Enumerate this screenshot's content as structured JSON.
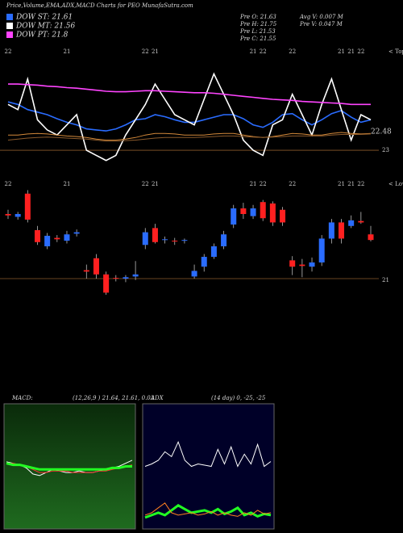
{
  "header": {
    "title": "Price,Volume,EMA,ADX,MACD Charts for PEO MunafaSutra.com",
    "info": [
      "Pre  O: 21.63",
      "Pre  H: 21.75",
      "Pre  L: 21.53",
      "Pre  C: 21.55",
      "Avg V: 0.007 M",
      "Pre  V: 0.047 M"
    ],
    "tops_label": "< Tope",
    "lows_label": "< Lowne"
  },
  "chart_data": [
    {
      "type": "line",
      "annotation": "22.48",
      "ylim": [
        22.7,
        25.0
      ],
      "yticks": [
        23
      ],
      "series": [
        {
          "name": "DOW ST: 21.61",
          "color": "#2a6cff",
          "values": [
            23.95,
            23.9,
            23.8,
            23.75,
            23.7,
            23.62,
            23.55,
            23.5,
            23.42,
            23.4,
            23.38,
            23.42,
            23.5,
            23.6,
            23.62,
            23.7,
            23.66,
            23.6,
            23.55,
            23.55,
            23.6,
            23.65,
            23.7,
            23.7,
            23.62,
            23.5,
            23.45,
            23.55,
            23.7,
            23.72,
            23.6,
            23.5,
            23.6,
            23.72,
            23.78,
            23.65,
            23.55,
            23.6
          ]
        },
        {
          "name": "DOW MT: 21.56",
          "color": "#ffffff",
          "values": [
            23.9,
            23.8,
            24.4,
            23.6,
            23.4,
            23.3,
            23.5,
            23.7,
            23.0,
            22.9,
            22.8,
            22.9,
            23.3,
            23.6,
            23.9,
            24.3,
            24.0,
            23.7,
            23.6,
            23.5,
            24.0,
            24.5,
            24.1,
            23.7,
            23.2,
            23.0,
            22.9,
            23.5,
            23.6,
            24.1,
            23.7,
            23.3,
            23.9,
            24.4,
            23.8,
            23.2,
            23.7,
            23.6
          ]
        },
        {
          "name": "DOW PT: 21.8",
          "color": "#ff44ff",
          "values": [
            24.3,
            24.3,
            24.29,
            24.28,
            24.26,
            24.25,
            24.23,
            24.22,
            24.2,
            24.18,
            24.16,
            24.15,
            24.15,
            24.16,
            24.17,
            24.17,
            24.16,
            24.15,
            24.14,
            24.13,
            24.13,
            24.12,
            24.1,
            24.08,
            24.06,
            24.04,
            24.02,
            24.0,
            23.99,
            23.98,
            23.96,
            23.95,
            23.94,
            23.93,
            23.92,
            23.9,
            23.9,
            23.9
          ]
        },
        {
          "color": "#d2883a",
          "values": [
            23.3,
            23.3,
            23.32,
            23.33,
            23.32,
            23.3,
            23.28,
            23.27,
            23.25,
            23.22,
            23.2,
            23.2,
            23.22,
            23.25,
            23.3,
            23.33,
            23.33,
            23.32,
            23.3,
            23.3,
            23.3,
            23.32,
            23.33,
            23.33,
            23.3,
            23.27,
            23.25,
            23.27,
            23.3,
            23.33,
            23.32,
            23.3,
            23.3,
            23.33,
            23.35,
            23.33,
            23.32,
            23.33
          ]
        },
        {
          "color": "#8b5a2b",
          "values": [
            23.2,
            23.22,
            23.24,
            23.25,
            23.26,
            23.25,
            23.24,
            23.23,
            23.22,
            23.2,
            23.18,
            23.18,
            23.19,
            23.2,
            23.22,
            23.24,
            23.25,
            23.25,
            23.25,
            23.25,
            23.26,
            23.27,
            23.28,
            23.28,
            23.27,
            23.26,
            23.25,
            23.26,
            23.27,
            23.28,
            23.28,
            23.28,
            23.28,
            23.3,
            23.31,
            23.31,
            23.31,
            23.32
          ]
        }
      ]
    },
    {
      "type": "candlestick",
      "ylim": [
        20.77,
        22.38
      ],
      "yticks": [
        21
      ],
      "categories": [
        "22",
        null,
        null,
        null,
        null,
        null,
        "21",
        null,
        null,
        null,
        null,
        null,
        null,
        null,
        "22",
        "21",
        null,
        null,
        null,
        null,
        null,
        null,
        null,
        null,
        null,
        "21",
        "22",
        null,
        null,
        "22",
        null,
        null,
        null,
        null,
        "21",
        "21",
        "22",
        null
      ],
      "open": [
        21.92,
        21.88,
        22.21,
        21.69,
        21.46,
        21.58,
        21.54,
        21.64,
        21.12,
        21.29,
        21.06,
        21.01,
        21.0,
        21.03,
        21.48,
        21.72,
        21.55,
        21.54,
        21.54,
        21.03,
        21.17,
        21.31,
        21.46,
        21.77,
        22.0,
        21.89,
        22.09,
        22.07,
        21.98,
        21.26,
        21.2,
        21.17,
        21.23,
        21.57,
        21.8,
        21.75,
        21.82,
        21.63
      ],
      "high": [
        21.98,
        21.95,
        22.26,
        21.75,
        21.65,
        21.62,
        21.68,
        21.7,
        21.2,
        21.35,
        21.1,
        21.05,
        21.05,
        21.25,
        21.72,
        21.78,
        21.6,
        21.58,
        21.57,
        21.2,
        21.35,
        21.5,
        21.68,
        22.05,
        22.08,
        22.05,
        22.12,
        22.1,
        22.02,
        21.32,
        21.28,
        21.3,
        21.62,
        21.85,
        21.85,
        21.9,
        21.95,
        21.75
      ],
      "low": [
        21.85,
        21.84,
        21.8,
        21.48,
        21.42,
        21.52,
        21.5,
        21.6,
        21.0,
        21.0,
        20.77,
        20.96,
        20.95,
        20.98,
        21.42,
        21.5,
        21.5,
        21.48,
        21.5,
        21.0,
        21.1,
        21.28,
        21.42,
        21.72,
        21.85,
        21.85,
        21.82,
        21.75,
        21.75,
        21.05,
        21.02,
        21.1,
        21.18,
        21.5,
        21.5,
        21.72,
        21.78,
        21.53
      ],
      "close": [
        21.9,
        21.92,
        21.84,
        21.52,
        21.61,
        21.56,
        21.63,
        21.66,
        21.1,
        21.06,
        20.8,
        21.0,
        21.02,
        21.06,
        21.66,
        21.52,
        21.56,
        21.53,
        21.55,
        21.11,
        21.31,
        21.46,
        21.63,
        22.0,
        21.92,
        22.0,
        21.86,
        21.8,
        21.8,
        21.17,
        21.18,
        21.23,
        21.57,
        21.8,
        21.57,
        21.83,
        21.8,
        21.55
      ],
      "up_color": "#2a6cff",
      "down_color": "#ff2020"
    },
    {
      "type": "line",
      "title": "MACD:",
      "subtitle": "(12,26,9 ) 21.64, 21.61, 0.03",
      "ylim": [
        21.2,
        22.0
      ],
      "series": [
        {
          "color": "#ffffff",
          "values": [
            21.63,
            21.62,
            21.61,
            21.59,
            21.55,
            21.54,
            21.56,
            21.58,
            21.57,
            21.56,
            21.56,
            21.57,
            21.56,
            21.56,
            21.57,
            21.58,
            21.59,
            21.6,
            21.62,
            21.64
          ]
        },
        {
          "color": "#ff3030",
          "values": [
            21.62,
            21.62,
            21.61,
            21.6,
            21.58,
            21.56,
            21.56,
            21.57,
            21.57,
            21.57,
            21.56,
            21.56,
            21.56,
            21.56,
            21.57,
            21.57,
            21.58,
            21.59,
            21.6,
            21.61
          ]
        },
        {
          "color": "#22ff22",
          "values": [
            21.62,
            21.61,
            21.61,
            21.6,
            21.59,
            21.58,
            21.58,
            21.58,
            21.58,
            21.58,
            21.58,
            21.58,
            21.58,
            21.58,
            21.58,
            21.58,
            21.59,
            21.59,
            21.6,
            21.6
          ]
        }
      ]
    },
    {
      "type": "line",
      "title": "ADX",
      "subtitle": "(14  day) 0, -25, -25",
      "ylim": [
        0,
        100
      ],
      "series": [
        {
          "color": "#ffffff",
          "values": [
            50,
            52,
            55,
            62,
            58,
            70,
            55,
            50,
            52,
            51,
            50,
            64,
            52,
            66,
            50,
            60,
            52,
            68,
            50,
            54
          ]
        },
        {
          "color": "#22ff22",
          "values": [
            8,
            10,
            12,
            10,
            14,
            18,
            15,
            12,
            13,
            14,
            12,
            15,
            11,
            13,
            16,
            10,
            12,
            9,
            11,
            10
          ]
        },
        {
          "color": "#ff8020",
          "values": [
            10,
            12,
            16,
            20,
            12,
            10,
            11,
            12,
            10,
            11,
            13,
            10,
            12,
            10,
            9,
            12,
            10,
            14,
            11,
            12
          ]
        }
      ]
    }
  ]
}
